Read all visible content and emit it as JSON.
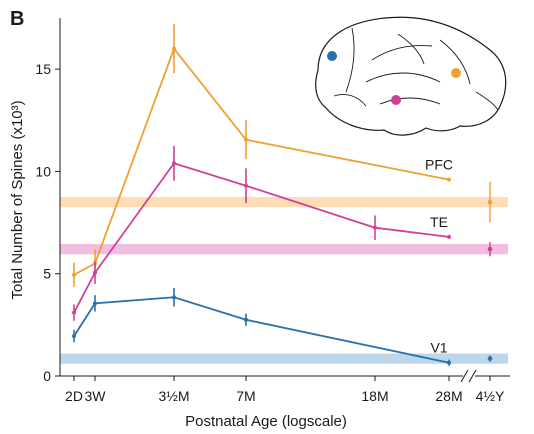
{
  "panel_label": "B",
  "colors": {
    "pfc": "#F0A030",
    "te": "#D0409A",
    "v1": "#2A6FAE",
    "pfc_band": "#FCDDB6",
    "te_band": "#F2BEDF",
    "v1_band": "#BDD7EA",
    "axis": "#1a1a1a"
  },
  "chart_data": {
    "type": "line",
    "title": "",
    "xlabel": "Postnatal Age (logscale)",
    "ylabel": "Total Number of Spines (x10³)",
    "x_scale": "log",
    "ylim": [
      0,
      17.5
    ],
    "yticks": [
      0,
      5,
      10,
      15
    ],
    "ytick_labels": [
      "0",
      "5",
      "10",
      "15"
    ],
    "xticks": [
      {
        "label": "2D",
        "days": 2
      },
      {
        "label": "3W",
        "days": 21
      },
      {
        "label": "3½M",
        "days": 105
      },
      {
        "label": "7M",
        "days": 210
      },
      {
        "label": "18M",
        "days": 540
      },
      {
        "label": "28M",
        "days": 840
      },
      {
        "label": "4½Y",
        "days": null
      }
    ],
    "axis_break": true,
    "grid": false,
    "series": [
      {
        "name": "PFC",
        "key": "pfc",
        "x": [
          2,
          21,
          105,
          210,
          840
        ],
        "y": [
          4.95,
          5.5,
          16.0,
          11.55,
          9.6
        ],
        "err": [
          0.6,
          0.7,
          1.2,
          0.95,
          0
        ],
        "adult": {
          "label": "4½Y",
          "y": 8.5,
          "err": 1.0
        }
      },
      {
        "name": "TE",
        "key": "te",
        "x": [
          2,
          21,
          105,
          210,
          540,
          840
        ],
        "y": [
          3.1,
          5.05,
          10.4,
          9.3,
          7.25,
          6.8
        ],
        "err": [
          0.4,
          0.55,
          0.85,
          0.85,
          0.6,
          0
        ],
        "adult": {
          "label": "4½Y",
          "y": 6.2,
          "err": 0.35
        }
      },
      {
        "name": "V1",
        "key": "v1",
        "x": [
          2,
          21,
          105,
          210,
          840
        ],
        "y": [
          1.95,
          3.55,
          3.85,
          2.75,
          0.65
        ],
        "err": [
          0.3,
          0.4,
          0.45,
          0.3,
          0.15
        ],
        "adult": {
          "label": "4½Y",
          "y": 0.85,
          "err": 0.15
        }
      }
    ],
    "bands": [
      {
        "key": "pfc",
        "y": 8.5,
        "height": 0.5
      },
      {
        "key": "te",
        "y": 6.2,
        "height": 0.5
      },
      {
        "key": "v1",
        "y": 0.85,
        "height": 0.5
      }
    ]
  },
  "brain_inset": {
    "icon": "monkey-brain-lateral-view",
    "dots": [
      "v1",
      "te",
      "pfc"
    ]
  }
}
